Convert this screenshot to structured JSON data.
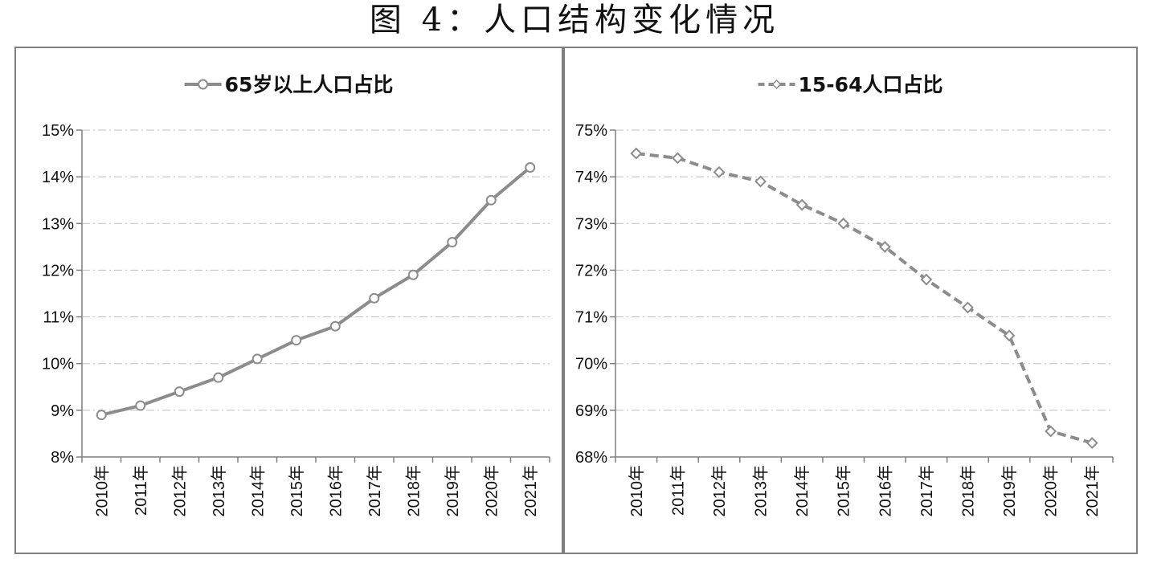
{
  "figure_title": "图 4：人口结构变化情况",
  "colors": {
    "series": "#8c8c8c",
    "axis": "#7f7f7f",
    "grid": "#bfbfbf",
    "border": "#7f7f7f"
  },
  "chart_data": [
    {
      "type": "line",
      "title": "",
      "xlabel": "",
      "ylabel": "",
      "categories": [
        "2010年",
        "2011年",
        "2012年",
        "2013年",
        "2014年",
        "2015年",
        "2016年",
        "2017年",
        "2018年",
        "2019年",
        "2020年",
        "2021年"
      ],
      "series": [
        {
          "name": "65岁以上人口占比",
          "marker": "circle",
          "line_style": "solid",
          "values": [
            8.9,
            9.1,
            9.4,
            9.7,
            10.1,
            10.5,
            10.8,
            11.4,
            11.9,
            12.6,
            13.5,
            14.2
          ]
        }
      ],
      "ylim": [
        8,
        15
      ],
      "yticks": [
        "8%",
        "9%",
        "10%",
        "11%",
        "12%",
        "13%",
        "14%",
        "15%"
      ],
      "grid": "horizontal-dashed",
      "legend": "top"
    },
    {
      "type": "line",
      "title": "",
      "xlabel": "",
      "ylabel": "",
      "categories": [
        "2010年",
        "2011年",
        "2012年",
        "2013年",
        "2014年",
        "2015年",
        "2016年",
        "2017年",
        "2018年",
        "2019年",
        "2020年",
        "2021年"
      ],
      "series": [
        {
          "name": "15-64人口占比",
          "marker": "diamond",
          "line_style": "dashed",
          "values": [
            74.5,
            74.4,
            74.1,
            73.9,
            73.4,
            73.0,
            72.5,
            71.8,
            71.2,
            70.6,
            68.55,
            68.3
          ]
        }
      ],
      "ylim": [
        68,
        75
      ],
      "yticks": [
        "68%",
        "69%",
        "70%",
        "71%",
        "72%",
        "73%",
        "74%",
        "75%"
      ],
      "grid": "horizontal-dashed",
      "legend": "top"
    }
  ]
}
